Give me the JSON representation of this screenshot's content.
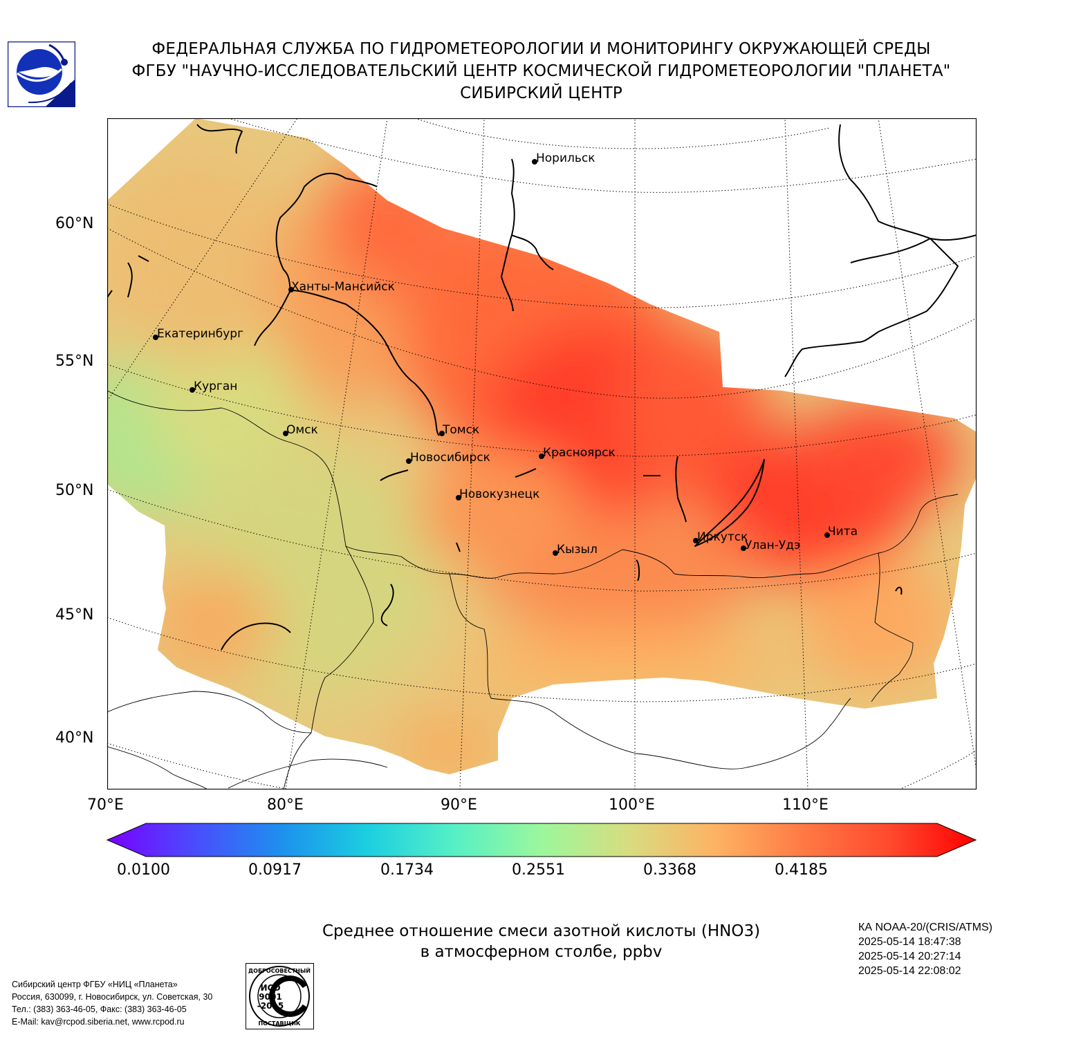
{
  "header": {
    "line1": "ФЕДЕРАЛЬНАЯ СЛУЖБА ПО ГИДРОМЕТЕОРОЛОГИИ И МОНИТОРИНГУ ОКРУЖАЮЩЕЙ СРЕДЫ",
    "line2": "ФГБУ \"НАУЧНО-ИССЛЕДОВАТЕЛЬСКИЙ ЦЕНТР КОСМИЧЕСКОЙ ГИДРОМЕТЕОРОЛОГИИ \"ПЛАНЕТА\"",
    "line3": "СИБИРСКИЙ ЦЕНТР"
  },
  "map": {
    "lat_labels": [
      "60°N",
      "55°N",
      "50°N",
      "45°N",
      "40°N"
    ],
    "lon_labels": [
      "70°E",
      "80°E",
      "90°E",
      "100°E",
      "110°E"
    ],
    "cities": [
      {
        "name": "Норильск"
      },
      {
        "name": "Ханты-Мансийск"
      },
      {
        "name": "Екатеринбург"
      },
      {
        "name": "Курган"
      },
      {
        "name": "Омск"
      },
      {
        "name": "Томск"
      },
      {
        "name": "Новосибирск"
      },
      {
        "name": "Красноярск"
      },
      {
        "name": "Новокузнецк"
      },
      {
        "name": "Иркутск"
      },
      {
        "name": "Улан-Удэ"
      },
      {
        "name": "Чита"
      },
      {
        "name": "Кызыл"
      }
    ]
  },
  "colorbar": {
    "tick_labels": [
      "0.0100",
      "0.0917",
      "0.1734",
      "0.2551",
      "0.3368",
      "0.4185"
    ],
    "min": 0.01,
    "max": 0.48,
    "colors": [
      "#7a00ff",
      "#4a4cfd",
      "#1d90ee",
      "#1ccfe0",
      "#56f0c6",
      "#9cf79c",
      "#d8dc80",
      "#fdb363",
      "#ff7a45",
      "#ff4a2e",
      "#ff0000"
    ]
  },
  "caption": {
    "line1": "Среднее отношение смеси азотной кислоты (HNO3)",
    "line2": "в атмосферном столбе, ppbv"
  },
  "satellite": {
    "name": "КА NOAA-20/(CRIS/ATMS)",
    "times": [
      "2025-05-14 18:47:38",
      "2025-05-14 20:27:14",
      "2025-05-14 22:08:02"
    ]
  },
  "footer": {
    "org_lines": [
      "Сибирский центр ФГБУ «НИЦ «Планета»",
      "Россия, 630099, г. Новосибирск, ул. Советская, 30",
      "Тел.: (383) 363-46-05, Факс: (383) 363-46-05",
      "E-Mail: kav@rcpod.siberia.net, www.rcpod.ru"
    ],
    "iso_badge": {
      "top": "ДОБРОСОВЕСТНЫЙ",
      "mid1": "ИСО",
      "mid2": "9001",
      "mid3": "-2015",
      "bottom": "ПОСТАВЩИК"
    }
  }
}
